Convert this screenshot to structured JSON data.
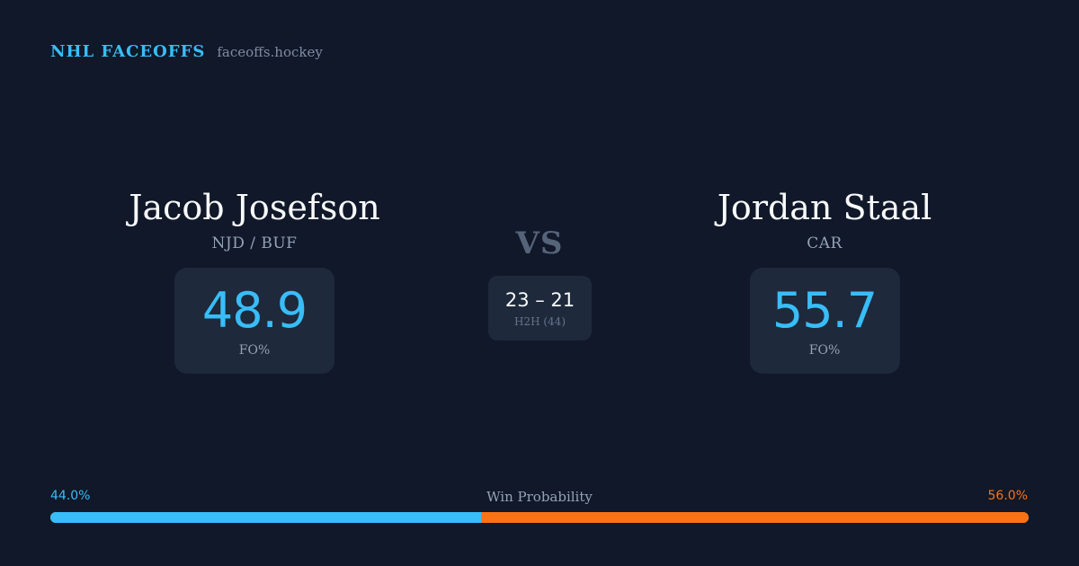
{
  "header": {
    "brand": "NHL FACEOFFS",
    "site": "faceoffs.hockey"
  },
  "matchup": {
    "left_player": {
      "name": "Jacob Josefson",
      "team": "NJD / BUF",
      "fo_pct": "48.9",
      "fo_label": "FO%"
    },
    "vs_label": "VS",
    "h2h": {
      "score": "23 – 21",
      "label": "H2H (44)"
    },
    "right_player": {
      "name": "Jordan Staal",
      "team": "CAR",
      "fo_pct": "55.7",
      "fo_label": "FO%"
    }
  },
  "win_probability": {
    "title": "Win Probability",
    "left_label": "44.0%",
    "right_label": "56.0%",
    "left_value": 44.0,
    "right_value": 56.0
  },
  "colors": {
    "background": "#101829",
    "accent_blue": "#38bdf8",
    "accent_orange": "#f97316",
    "card": "#1e293b"
  }
}
